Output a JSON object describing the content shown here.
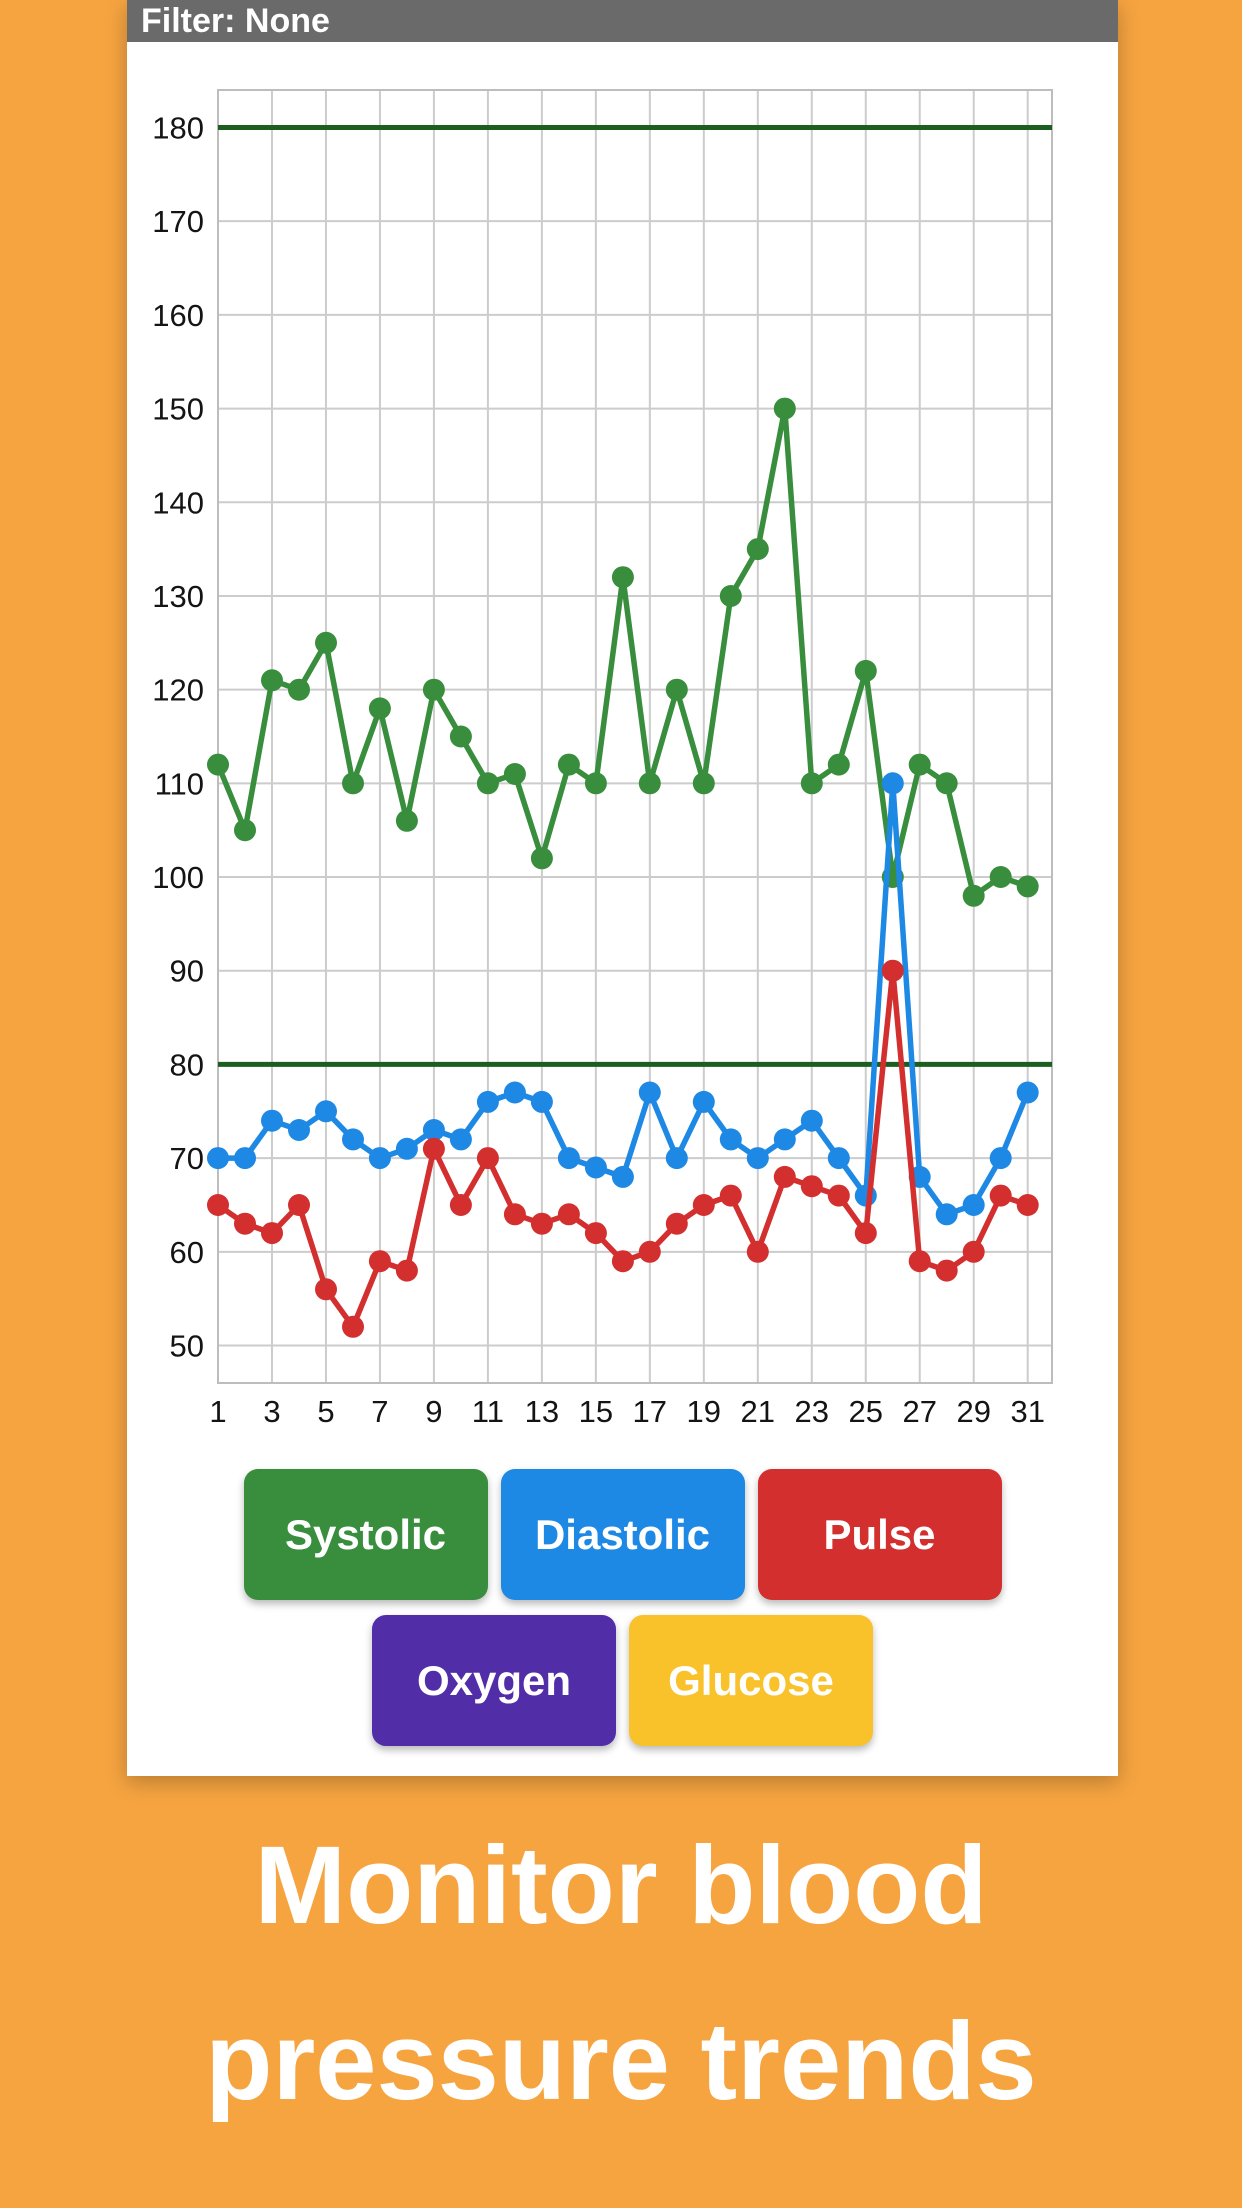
{
  "app": {
    "filter_bar_label": "Filter: None",
    "caption": "Monitor blood pressure trends"
  },
  "colors": {
    "background": "#F6A440",
    "card": "#FFFFFF",
    "filter_bar": "#6A6A6A",
    "grid": "#CCCCCC",
    "axis_text": "#141414",
    "reference_line": "#1B5E20"
  },
  "buttons": [
    {
      "label": "Systolic",
      "color": "#388E3C"
    },
    {
      "label": "Diastolic",
      "color": "#1E88E5"
    },
    {
      "label": "Pulse",
      "color": "#D32F2F"
    },
    {
      "label": "Oxygen",
      "color": "#512DA8"
    },
    {
      "label": "Glucose",
      "color": "#F9C22B"
    }
  ],
  "chart_data": {
    "type": "line",
    "title": "",
    "xlabel": "",
    "ylabel": "",
    "x": [
      1,
      2,
      3,
      4,
      5,
      6,
      7,
      8,
      9,
      10,
      11,
      12,
      13,
      14,
      15,
      16,
      17,
      18,
      19,
      20,
      21,
      22,
      23,
      24,
      25,
      26,
      27,
      28,
      29,
      30,
      31
    ],
    "x_tick_labels": [
      "1",
      "3",
      "5",
      "7",
      "9",
      "11",
      "13",
      "15",
      "17",
      "19",
      "21",
      "23",
      "25",
      "27",
      "29",
      "31"
    ],
    "x_tick_values": [
      1,
      3,
      5,
      7,
      9,
      11,
      13,
      15,
      17,
      19,
      21,
      23,
      25,
      27,
      29,
      31
    ],
    "y_ticks": [
      50,
      60,
      70,
      80,
      90,
      100,
      110,
      120,
      130,
      140,
      150,
      160,
      170,
      180
    ],
    "ylim": [
      46,
      184
    ],
    "reference_lines": [
      180,
      80
    ],
    "grid": true,
    "legend_position": "buttons-below",
    "series": [
      {
        "name": "Systolic",
        "color": "#388E3C",
        "values": [
          112,
          105,
          121,
          120,
          125,
          110,
          118,
          106,
          120,
          115,
          110,
          111,
          102,
          112,
          110,
          132,
          110,
          120,
          110,
          130,
          135,
          150,
          110,
          112,
          122,
          100,
          112,
          110,
          98,
          100,
          99
        ]
      },
      {
        "name": "Diastolic",
        "color": "#1E88E5",
        "values": [
          70,
          70,
          74,
          73,
          75,
          72,
          70,
          71,
          73,
          72,
          76,
          77,
          76,
          70,
          69,
          68,
          77,
          70,
          76,
          72,
          70,
          72,
          74,
          70,
          66,
          110,
          68,
          64,
          65,
          70,
          77
        ]
      },
      {
        "name": "Pulse",
        "color": "#D32F2F",
        "values": [
          65,
          63,
          62,
          65,
          56,
          52,
          59,
          58,
          71,
          65,
          70,
          64,
          63,
          64,
          62,
          59,
          60,
          63,
          65,
          66,
          60,
          68,
          67,
          66,
          62,
          90,
          59,
          58,
          60,
          66,
          65
        ]
      }
    ]
  }
}
